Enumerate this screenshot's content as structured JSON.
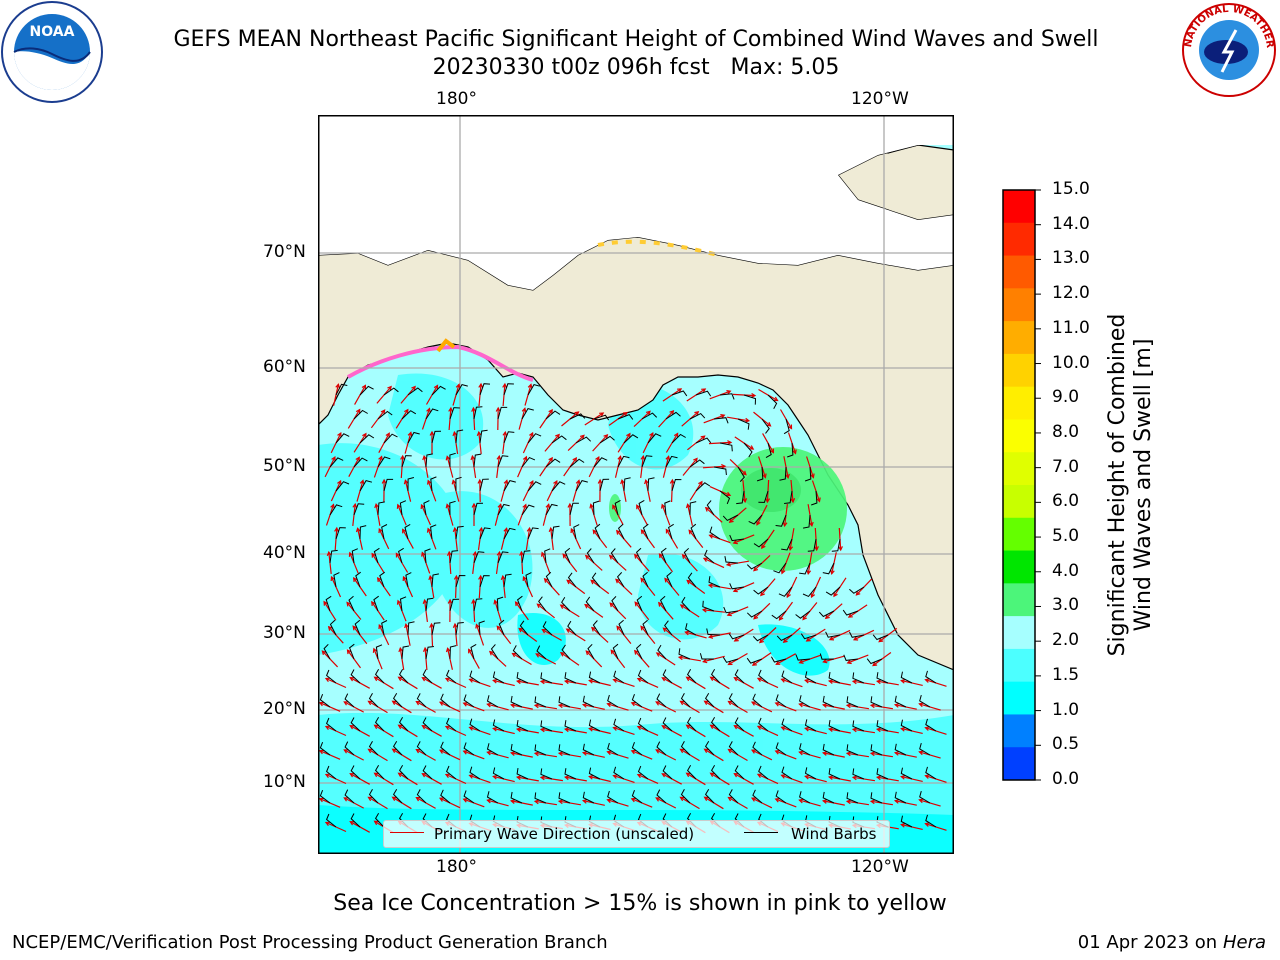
{
  "header": {
    "title_line1": "GEFS MEAN Northeast Pacific Significant Height of Combined Wind Waves and Swell",
    "title_line2": "20230330 t00z 096h fcst   Max: 5.05"
  },
  "logos": {
    "left": {
      "name": "noaa-logo",
      "text": "NOAA"
    },
    "right": {
      "name": "nws-logo",
      "text": "NATIONAL WEATHER SERVICE"
    }
  },
  "map": {
    "lon_labels_top": [
      "180°",
      "120°W"
    ],
    "lon_labels_bottom": [
      "180°",
      "120°W"
    ],
    "lat_labels": [
      "70°N",
      "60°N",
      "50°N",
      "40°N",
      "30°N",
      "20°N",
      "10°N"
    ]
  },
  "legend": {
    "wave_direction_label": "Primary Wave Direction (unscaled)",
    "wind_barbs_label": "Wind Barbs",
    "wave_color": "#dd0000",
    "barb_color": "#000000"
  },
  "colorbar": {
    "title_line1": "Significant Height of Combined",
    "title_line2": "Wind Waves and Swell [m]",
    "ticks": [
      "15.0",
      "14.0",
      "13.0",
      "12.0",
      "11.0",
      "10.0",
      "9.0",
      "8.0",
      "7.0",
      "6.0",
      "5.0",
      "4.0",
      "3.0",
      "2.0",
      "1.5",
      "1.0",
      "0.5",
      "0.0"
    ],
    "colors_top_to_bottom": [
      "#ff0000",
      "#ff2a00",
      "#ff5a00",
      "#ff8000",
      "#ffad00",
      "#ffd200",
      "#ffee00",
      "#fbff00",
      "#e0ff00",
      "#c8ff00",
      "#64ff00",
      "#00e600",
      "#4cf57a",
      "#a6ffff",
      "#4cffff",
      "#00ffff",
      "#0080ff",
      "#0040ff",
      "#0000ff"
    ]
  },
  "footer": {
    "note": "Sea Ice Concentration > 15% is shown in pink to yellow",
    "left": "NCEP/EMC/Verification Post Processing Product Generation Branch",
    "right_prefix": "01 Apr 2023 on ",
    "right_machine": "Hera"
  }
}
